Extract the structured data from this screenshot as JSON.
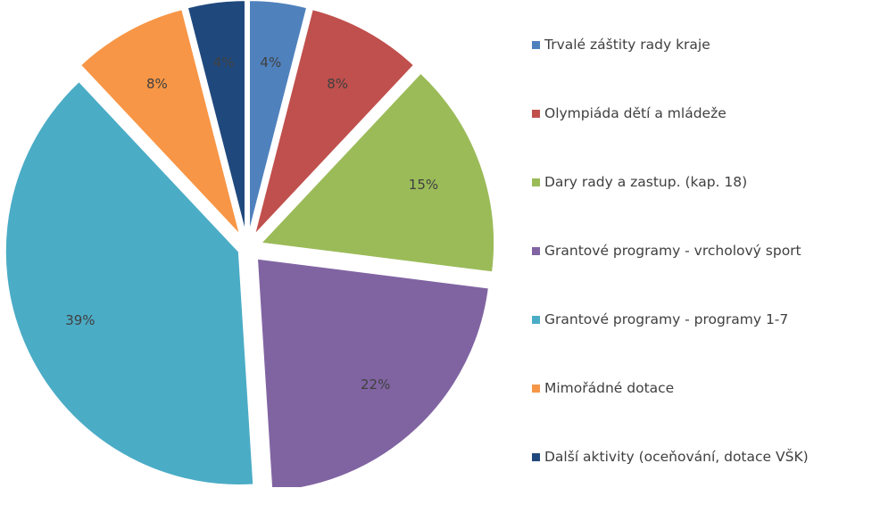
{
  "chart_data": {
    "type": "pie",
    "exploded": true,
    "title": "",
    "legend_position": "right",
    "label_format": "percent",
    "slices": [
      {
        "label": "Trvalé záštity rady kraje",
        "value": 4,
        "display": "4%",
        "color": "#4f81bd"
      },
      {
        "label": "Olympiáda dětí a mládeže",
        "value": 8,
        "display": "8%",
        "color": "#c0504d"
      },
      {
        "label": "Dary rady a zastup. (kap. 18)",
        "value": 15,
        "display": "15%",
        "color": "#9bbb59"
      },
      {
        "label": "Grantové programy - vrcholový sport",
        "value": 22,
        "display": "22%",
        "color": "#8064a2"
      },
      {
        "label": "Grantové programy - programy 1-7",
        "value": 39,
        "display": "39%",
        "color": "#4bacc6"
      },
      {
        "label": "Mimořádné dotace",
        "value": 8,
        "display": "8%",
        "color": "#f79646"
      },
      {
        "label": "Další aktivity (oceňování, dotace VŠK)",
        "value": 4,
        "display": "4%",
        "color": "#1f497d"
      }
    ]
  }
}
